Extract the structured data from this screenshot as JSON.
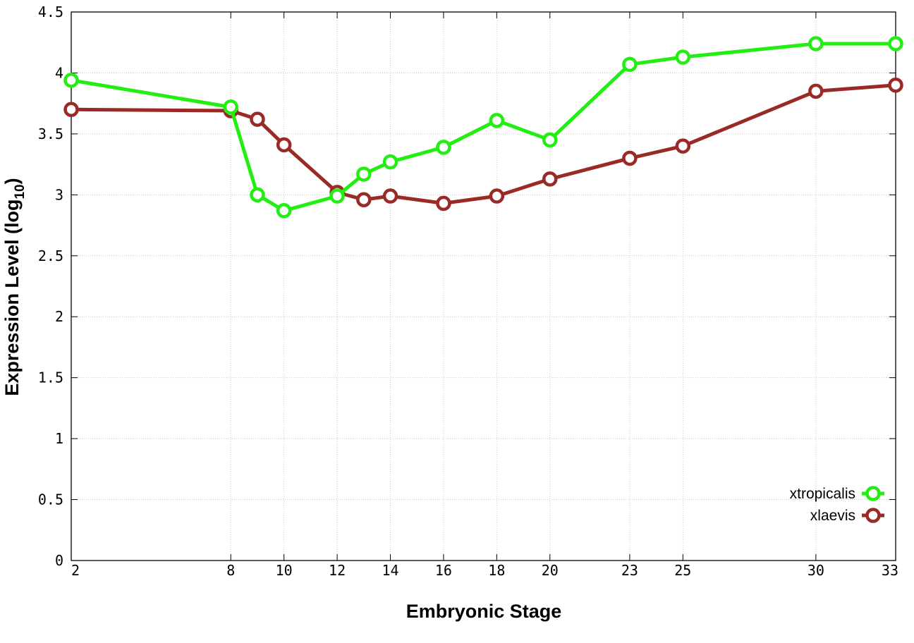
{
  "chart_data": {
    "type": "line",
    "xlabel": "Embryonic Stage",
    "ylabel_main": "Expression Level (log",
    "ylabel_sub": "10",
    "ylabel_close": ")",
    "x_ticks": [
      2,
      8,
      10,
      12,
      14,
      16,
      18,
      20,
      23,
      25,
      30,
      33
    ],
    "x_tick_labels": [
      "2",
      "8",
      "10",
      "12",
      "14",
      "16",
      "18",
      "20",
      "23",
      "25",
      "30",
      "33"
    ],
    "y_ticks": [
      0,
      0.5,
      1,
      1.5,
      2,
      2.5,
      3,
      3.5,
      4,
      4.5
    ],
    "y_tick_labels": [
      "0",
      "0.5",
      "1",
      "1.5",
      "2",
      "2.5",
      "3",
      "3.5",
      "4",
      "4.5"
    ],
    "xlim": [
      2,
      33
    ],
    "ylim": [
      0,
      4.5
    ],
    "grid": true,
    "legend_position": "bottom-right",
    "series": [
      {
        "name": "xtropicalis",
        "color": "#22ee11",
        "x": [
          2,
          8,
          9,
          10,
          12,
          13,
          14,
          16,
          18,
          20,
          23,
          25,
          30,
          33
        ],
        "y": [
          3.94,
          3.72,
          3.0,
          2.87,
          2.99,
          3.17,
          3.27,
          3.39,
          3.61,
          3.45,
          4.07,
          4.13,
          4.24,
          4.24
        ]
      },
      {
        "name": "xlaevis",
        "color": "#992a25",
        "x": [
          2,
          8,
          9,
          10,
          12,
          13,
          14,
          16,
          18,
          20,
          23,
          25,
          30,
          33
        ],
        "y": [
          3.7,
          3.69,
          3.62,
          3.41,
          3.02,
          2.96,
          2.99,
          2.93,
          2.99,
          3.13,
          3.3,
          3.4,
          3.85,
          3.9
        ]
      }
    ]
  }
}
